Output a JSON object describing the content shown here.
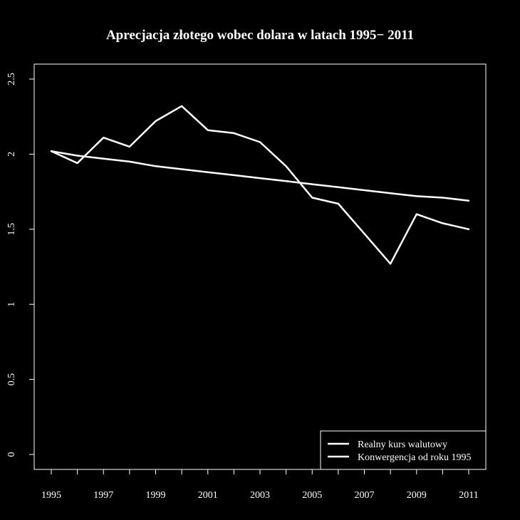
{
  "chart_data": {
    "type": "line",
    "title": "Aprecjacja złotego wobec dolara w latach 1995− 2011",
    "xlabel": "",
    "ylabel": "",
    "x": [
      1995,
      1996,
      1997,
      1998,
      1999,
      2000,
      2001,
      2002,
      2003,
      2004,
      2005,
      2006,
      2007,
      2008,
      2009,
      2010,
      2011
    ],
    "xlim": [
      1995,
      2011
    ],
    "ylim": [
      0,
      2.5
    ],
    "x_ticks": [
      1995,
      1996,
      1997,
      1998,
      1999,
      2000,
      2001,
      2002,
      2003,
      2004,
      2005,
      2006,
      2007,
      2008,
      2009,
      2010,
      2011
    ],
    "x_tick_labels": [
      "1995",
      "",
      "1997",
      "",
      "1999",
      "",
      "2001",
      "",
      "2003",
      "",
      "2005",
      "",
      "2007",
      "",
      "2009",
      "",
      "2011"
    ],
    "y_ticks": [
      0,
      0.5,
      1,
      1.5,
      2,
      2.5
    ],
    "y_tick_labels": [
      "0",
      "0.5",
      "1",
      "1.5",
      "2",
      "2.5"
    ],
    "grid": false,
    "legend_position": "bottom-right",
    "series": [
      {
        "name": "Realny kurs walutowy",
        "color": "#ffffff",
        "values": [
          2.02,
          1.94,
          2.11,
          2.05,
          2.22,
          2.32,
          2.16,
          2.14,
          2.08,
          1.92,
          1.71,
          1.67,
          1.47,
          1.27,
          1.6,
          1.54,
          1.5
        ]
      },
      {
        "name": "Konwergencja od roku 1995",
        "color": "#ffffff",
        "values": [
          2.02,
          1.99,
          1.97,
          1.95,
          1.92,
          1.9,
          1.88,
          1.86,
          1.84,
          1.82,
          1.8,
          1.78,
          1.76,
          1.74,
          1.72,
          1.71,
          1.69
        ]
      }
    ]
  }
}
